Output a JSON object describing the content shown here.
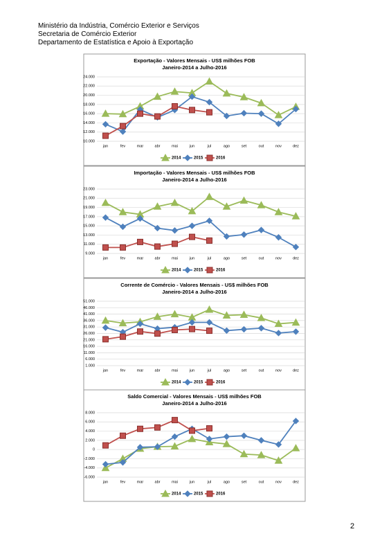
{
  "header": {
    "lines": [
      "Ministério da Indústria, Comércio Exterior e Serviços",
      "Secretaria de Comércio Exterior",
      "Departamento de Estatística e Apoio à Exportação"
    ]
  },
  "page_number": "2",
  "chart_data": [
    {
      "type": "line",
      "title": "Exportação - Valores Mensais -  US$ milhões FOB",
      "subtitle": "Janeiro-2014 a Julho-2016",
      "categories": [
        "jan",
        "fev",
        "mar",
        "abr",
        "mai",
        "jun",
        "jul",
        "ago",
        "set",
        "out",
        "nov",
        "dez"
      ],
      "series": [
        {
          "name": "2014",
          "color": "#9bbb59",
          "marker": "triangle",
          "values": [
            16000,
            15900,
            17600,
            19700,
            20800,
            20500,
            23000,
            20400,
            19600,
            18300,
            15700,
            17500
          ]
        },
        {
          "name": "2015",
          "color": "#4f81bd",
          "marker": "diamond",
          "values": [
            13700,
            12100,
            16900,
            15200,
            16800,
            19700,
            18500,
            15500,
            16100,
            16000,
            13800,
            17000
          ]
        },
        {
          "name": "2016",
          "color": "#c0504d",
          "marker": "square",
          "values": [
            11200,
            13300,
            16000,
            15400,
            17600,
            16800,
            16300,
            null,
            null,
            null,
            null,
            null
          ]
        }
      ],
      "ylim": [
        10000,
        24000
      ],
      "yticks": [
        {
          "value": 10000,
          "label": "10.000"
        },
        {
          "value": 12000,
          "label": "12.000"
        },
        {
          "value": 14000,
          "label": "14.000"
        },
        {
          "value": 16000,
          "label": "16.000"
        },
        {
          "value": 18000,
          "label": "18.000"
        },
        {
          "value": 20000,
          "label": "20.000"
        },
        {
          "value": 22000,
          "label": "22.000"
        },
        {
          "value": 24000,
          "label": "24.000"
        }
      ],
      "grid": true,
      "legend": "bottom"
    },
    {
      "type": "line",
      "title": "Importação - Valores Mensais -  US$ milhões FOB",
      "subtitle": "Janeiro-2014 a Julho-2016",
      "categories": [
        "jan",
        "fev",
        "mar",
        "abr",
        "mai",
        "jun",
        "jul",
        "ago",
        "set",
        "out",
        "nov",
        "dez"
      ],
      "series": [
        {
          "name": "2014",
          "color": "#9bbb59",
          "marker": "triangle",
          "values": [
            20000,
            18000,
            17500,
            19200,
            20000,
            18200,
            21300,
            19200,
            20500,
            19500,
            18000,
            17100
          ]
        },
        {
          "name": "2015",
          "color": "#4f81bd",
          "marker": "diamond",
          "values": [
            16800,
            14800,
            16600,
            14500,
            14000,
            15000,
            16100,
            12700,
            13100,
            14100,
            12500,
            10400
          ]
        },
        {
          "name": "2016",
          "color": "#c0504d",
          "marker": "square",
          "values": [
            10300,
            10300,
            11500,
            10500,
            11100,
            12600,
            11800,
            null,
            null,
            null,
            null,
            null
          ]
        }
      ],
      "ylim": [
        9000,
        23000
      ],
      "yticks": [
        {
          "value": 9000,
          "label": "9.000"
        },
        {
          "value": 11000,
          "label": "11.000"
        },
        {
          "value": 13000,
          "label": "13.000"
        },
        {
          "value": 15000,
          "label": "15.000"
        },
        {
          "value": 17000,
          "label": "17.000"
        },
        {
          "value": 19000,
          "label": "19.000"
        },
        {
          "value": 21000,
          "label": "21.000"
        },
        {
          "value": 23000,
          "label": "23.000"
        }
      ],
      "grid": true,
      "legend": "bottom"
    },
    {
      "type": "line",
      "title": "Corrente de Comércio - Valores Mensais -  US$ milhões FOB",
      "subtitle": "Janeiro-2014 a Julho-2016",
      "categories": [
        "jan",
        "fev",
        "mar",
        "abr",
        "mai",
        "jun",
        "jul",
        "ago",
        "set",
        "out",
        "nov",
        "dez"
      ],
      "series": [
        {
          "name": "2014",
          "color": "#9bbb59",
          "marker": "triangle",
          "values": [
            36000,
            34000,
            35000,
            39000,
            41000,
            38500,
            44500,
            40000,
            40500,
            38000,
            33500,
            34500
          ]
        },
        {
          "name": "2015",
          "color": "#4f81bd",
          "marker": "diamond",
          "values": [
            30500,
            27000,
            33500,
            29700,
            30800,
            34600,
            34600,
            28200,
            29200,
            30100,
            26300,
            27400
          ]
        },
        {
          "name": "2016",
          "color": "#c0504d",
          "marker": "square",
          "values": [
            21500,
            23500,
            27500,
            25900,
            28700,
            29400,
            28100,
            null,
            null,
            null,
            null,
            null
          ]
        }
      ],
      "ylim": [
        1000,
        51000
      ],
      "yticks": [
        {
          "value": 1000,
          "label": "1.000"
        },
        {
          "value": 6000,
          "label": "6.000"
        },
        {
          "value": 11000,
          "label": "11.000"
        },
        {
          "value": 16000,
          "label": "16.000"
        },
        {
          "value": 21000,
          "label": "21.000"
        },
        {
          "value": 26000,
          "label": "26.000"
        },
        {
          "value": 31000,
          "label": "31.000"
        },
        {
          "value": 36000,
          "label": "36.000"
        },
        {
          "value": 41000,
          "label": "41.000"
        },
        {
          "value": 46000,
          "label": "46.000"
        },
        {
          "value": 51000,
          "label": "51.000"
        }
      ],
      "grid": true,
      "legend": "bottom"
    },
    {
      "type": "line",
      "title": "Saldo Comercial - Valores Mensais - US$ milhões FOB",
      "subtitle": "Janeiro-2014 a Julho-2016",
      "categories": [
        "jan",
        "fev",
        "mar",
        "abr",
        "mai",
        "jun",
        "jul",
        "ago",
        "set",
        "out",
        "nov",
        "dez"
      ],
      "series": [
        {
          "name": "2014",
          "color": "#9bbb59",
          "marker": "triangle",
          "values": [
            -4000,
            -2000,
            200,
            600,
            700,
            2300,
            1600,
            1200,
            -1000,
            -1200,
            -2400,
            300
          ]
        },
        {
          "name": "2015",
          "color": "#4f81bd",
          "marker": "diamond",
          "values": [
            -3200,
            -2800,
            500,
            600,
            2800,
            4500,
            2300,
            2800,
            3000,
            2000,
            1100,
            6200
          ]
        },
        {
          "name": "2016",
          "color": "#c0504d",
          "marker": "square",
          "values": [
            900,
            3000,
            4500,
            4800,
            6400,
            4100,
            4600,
            null,
            null,
            null,
            null,
            null
          ]
        }
      ],
      "ylim": [
        -6000,
        8000
      ],
      "yticks": [
        {
          "value": -6000,
          "label": "-6.000"
        },
        {
          "value": -4000,
          "label": "-4.000"
        },
        {
          "value": -2000,
          "label": "-2.000"
        },
        0,
        {
          "value": 2000,
          "label": "2.000"
        },
        {
          "value": 4000,
          "label": "4.000"
        },
        {
          "value": 6000,
          "label": "6.000"
        },
        {
          "value": 8000,
          "label": "8.000"
        }
      ],
      "grid": true,
      "legend": "bottom"
    }
  ]
}
